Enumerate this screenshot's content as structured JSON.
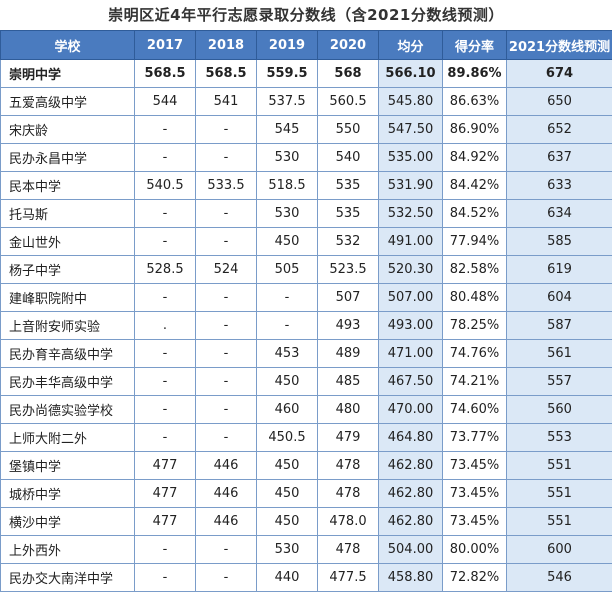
{
  "title": "崇明区近4年平行志愿录取分数线（含2021分数线预测）",
  "colors": {
    "header_bg": "#4a7bbf",
    "header_text": "#ffffff",
    "accent_cell_bg": "#dbe8f6",
    "border": "#7a9cc9"
  },
  "columns": [
    "学校",
    "2017",
    "2018",
    "2019",
    "2020",
    "均分",
    "得分率",
    "2021分数线预测"
  ],
  "rows": [
    [
      "崇明中学",
      "568.5",
      "568.5",
      "559.5",
      "568",
      "566.10",
      "89.86%",
      "674"
    ],
    [
      "五爱高级中学",
      "544",
      "541",
      "537.5",
      "560.5",
      "545.80",
      "86.63%",
      "650"
    ],
    [
      "宋庆龄",
      "-",
      "-",
      "545",
      "550",
      "547.50",
      "86.90%",
      "652"
    ],
    [
      "民办永昌中学",
      "-",
      "-",
      "530",
      "540",
      "535.00",
      "84.92%",
      "637"
    ],
    [
      "民本中学",
      "540.5",
      "533.5",
      "518.5",
      "535",
      "531.90",
      "84.42%",
      "633"
    ],
    [
      "托马斯",
      "-",
      "-",
      "530",
      "535",
      "532.50",
      "84.52%",
      "634"
    ],
    [
      "金山世外",
      "-",
      "-",
      "450",
      "532",
      "491.00",
      "77.94%",
      "585"
    ],
    [
      "杨子中学",
      "528.5",
      "524",
      "505",
      "523.5",
      "520.30",
      "82.58%",
      "619"
    ],
    [
      "建峰职院附中",
      "-",
      "-",
      "-",
      "507",
      "507.00",
      "80.48%",
      "604"
    ],
    [
      "上音附安师实验",
      ".",
      "-",
      "-",
      "493",
      "493.00",
      "78.25%",
      "587"
    ],
    [
      "民办育辛高级中学",
      "-",
      "-",
      "453",
      "489",
      "471.00",
      "74.76%",
      "561"
    ],
    [
      "民办丰华高级中学",
      "-",
      "-",
      "450",
      "485",
      "467.50",
      "74.21%",
      "557"
    ],
    [
      "民办尚德实验学校",
      "-",
      "-",
      "460",
      "480",
      "470.00",
      "74.60%",
      "560"
    ],
    [
      "上师大附二外",
      "-",
      "-",
      "450.5",
      "479",
      "464.80",
      "73.77%",
      "553"
    ],
    [
      "堡镇中学",
      "477",
      "446",
      "450",
      "478",
      "462.80",
      "73.45%",
      "551"
    ],
    [
      "城桥中学",
      "477",
      "446",
      "450",
      "478",
      "462.80",
      "73.45%",
      "551"
    ],
    [
      "横沙中学",
      "477",
      "446",
      "450",
      "478.0",
      "462.80",
      "73.45%",
      "551"
    ],
    [
      "上外西外",
      "-",
      "-",
      "530",
      "478",
      "504.00",
      "80.00%",
      "600"
    ],
    [
      "民办交大南洋中学",
      "-",
      "-",
      "440",
      "477.5",
      "458.80",
      "72.82%",
      "546"
    ]
  ]
}
